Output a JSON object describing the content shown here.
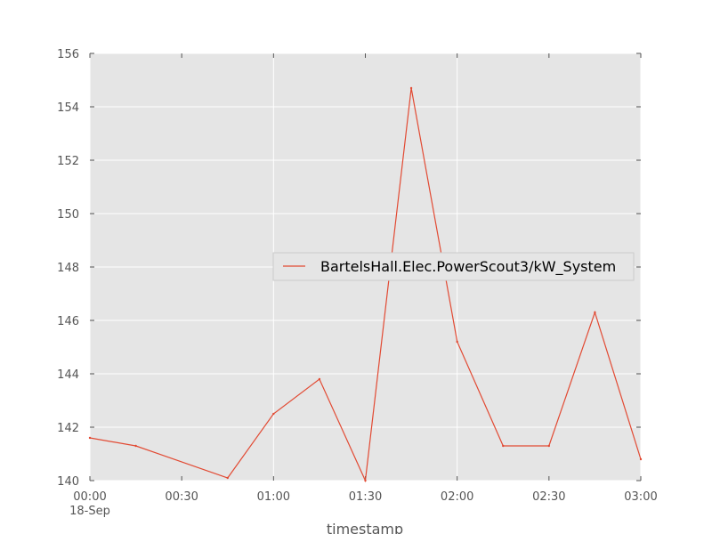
{
  "chart_data": {
    "type": "line",
    "xlabel": "timestamp",
    "ylabel": "",
    "ylim": [
      140,
      156
    ],
    "grid": true,
    "legend_position": "center-right",
    "colors": {
      "background": "#e5e5e5",
      "grid": "#ffffff",
      "line": "#e24a33",
      "tick_text": "#555555"
    },
    "x_ticks": [
      {
        "time": "00:00",
        "label": "00:00",
        "sublabel": "18-Sep"
      },
      {
        "time": "00:30",
        "label": "00:30",
        "sublabel": ""
      },
      {
        "time": "01:00",
        "label": "01:00",
        "sublabel": ""
      },
      {
        "time": "01:30",
        "label": "01:30",
        "sublabel": ""
      },
      {
        "time": "02:00",
        "label": "02:00",
        "sublabel": ""
      },
      {
        "time": "02:30",
        "label": "02:30",
        "sublabel": ""
      },
      {
        "time": "03:00",
        "label": "03:00",
        "sublabel": ""
      }
    ],
    "y_ticks": [
      140,
      142,
      144,
      146,
      148,
      150,
      152,
      154,
      156
    ],
    "series": [
      {
        "name": "BartelsHall.Elec.PowerScout3/kW_System",
        "color": "#e24a33",
        "points": [
          {
            "x": "00:00",
            "y": 141.6
          },
          {
            "x": "00:15",
            "y": 141.3
          },
          {
            "x": "00:45",
            "y": 140.1
          },
          {
            "x": "01:00",
            "y": 142.5
          },
          {
            "x": "01:15",
            "y": 143.8
          },
          {
            "x": "01:30",
            "y": 140.0
          },
          {
            "x": "01:45",
            "y": 154.7
          },
          {
            "x": "02:00",
            "y": 145.2
          },
          {
            "x": "02:15",
            "y": 141.3
          },
          {
            "x": "02:30",
            "y": 141.3
          },
          {
            "x": "02:45",
            "y": 146.3
          },
          {
            "x": "03:00",
            "y": 140.8
          }
        ]
      }
    ]
  }
}
